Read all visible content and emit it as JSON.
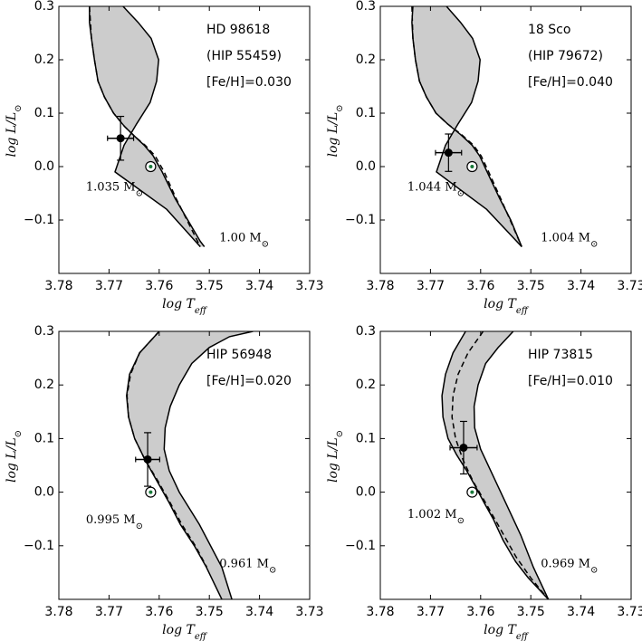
{
  "chart_data": [
    {
      "type": "line",
      "title_lines": [
        "HD 98618",
        "(HIP 55459)",
        "[Fe/H]=0.030"
      ],
      "xlabel": "log T",
      "xlabel_sub": "eff",
      "ylabel": "log L/L",
      "ylabel_sub": "⊙",
      "xlim": [
        3.78,
        3.73
      ],
      "ylim": [
        -0.2,
        0.3
      ],
      "xticks": [
        "3.78",
        "3.77",
        "3.76",
        "3.75",
        "3.74",
        "3.73"
      ],
      "yticks": [
        "0.3",
        "0.2",
        "0.1",
        "0.0",
        "−0.1"
      ],
      "tracks": [
        {
          "label": "1.035 M",
          "label_pos": [
            3.7746,
            -0.045
          ],
          "x": [
            3.7739,
            3.7739,
            3.7735,
            3.7729,
            3.7722,
            3.7709,
            3.7691,
            3.7669,
            3.7647,
            3.763,
            3.7612,
            3.7594,
            3.7568,
            3.7518,
            3.751
          ],
          "y": [
            0.3,
            0.27,
            0.24,
            0.2,
            0.16,
            0.13,
            0.1,
            0.075,
            0.055,
            0.04,
            0.02,
            -0.01,
            -0.06,
            -0.14,
            -0.15
          ]
        },
        {
          "label": "1.00 M",
          "label_pos": [
            3.748,
            -0.14
          ],
          "x": [
            3.7672,
            3.7642,
            3.7616,
            3.7601,
            3.7605,
            3.7618,
            3.7645,
            3.767,
            3.7688,
            3.7585,
            3.7518
          ],
          "y": [
            0.3,
            0.27,
            0.24,
            0.2,
            0.16,
            0.12,
            0.08,
            0.04,
            -0.01,
            -0.08,
            -0.15
          ]
        }
      ],
      "dashed": {
        "x": [
          3.7739,
          3.7735,
          3.7729,
          3.7722,
          3.7709,
          3.7691,
          3.7669,
          3.7647,
          3.7628,
          3.7608,
          3.759,
          3.7566,
          3.7518
        ],
        "y": [
          0.3,
          0.24,
          0.2,
          0.16,
          0.13,
          0.1,
          0.075,
          0.055,
          0.04,
          0.02,
          -0.01,
          -0.06,
          -0.15
        ]
      },
      "star": {
        "x": 3.7677,
        "y": 0.053,
        "xerr": 0.0026,
        "yerr": 0.041
      },
      "sun": {
        "x": 3.7617,
        "y": 0.0
      }
    },
    {
      "type": "line",
      "title_lines": [
        "18 Sco",
        "(HIP 79672)",
        "[Fe/H]=0.040"
      ],
      "xlabel": "log T",
      "xlabel_sub": "eff",
      "ylabel": "log L/L",
      "ylabel_sub": "⊙",
      "xlim": [
        3.78,
        3.73
      ],
      "ylim": [
        -0.2,
        0.3
      ],
      "xticks": [
        "3.78",
        "3.77",
        "3.76",
        "3.75",
        "3.74",
        "3.73"
      ],
      "yticks": [
        "0.3",
        "0.2",
        "0.1",
        "0.0",
        "−0.1"
      ],
      "tracks": [
        {
          "label": "1.044 M",
          "label_pos": [
            3.7746,
            -0.045
          ],
          "x": [
            3.7735,
            3.7737,
            3.7735,
            3.773,
            3.7722,
            3.7708,
            3.7689,
            3.7666,
            3.764,
            3.7617,
            3.7602,
            3.7587,
            3.7562,
            3.754,
            3.7518
          ],
          "y": [
            0.3,
            0.27,
            0.24,
            0.2,
            0.16,
            0.13,
            0.1,
            0.08,
            0.06,
            0.04,
            0.02,
            -0.01,
            -0.06,
            -0.1,
            -0.15
          ]
        },
        {
          "label": "1.004 M",
          "label_pos": [
            3.748,
            -0.14
          ],
          "x": [
            3.7668,
            3.764,
            3.7616,
            3.7601,
            3.7605,
            3.7618,
            3.7645,
            3.767,
            3.7688,
            3.7588,
            3.7518
          ],
          "y": [
            0.3,
            0.27,
            0.24,
            0.2,
            0.16,
            0.12,
            0.08,
            0.04,
            -0.01,
            -0.08,
            -0.15
          ]
        }
      ],
      "dashed": {
        "x": [
          3.7737,
          3.7735,
          3.773,
          3.7722,
          3.7708,
          3.7689,
          3.7666,
          3.7638,
          3.7614,
          3.7599,
          3.7584,
          3.756,
          3.7518
        ],
        "y": [
          0.3,
          0.24,
          0.2,
          0.16,
          0.13,
          0.1,
          0.08,
          0.06,
          0.04,
          0.02,
          -0.01,
          -0.06,
          -0.15
        ]
      },
      "star": {
        "x": 3.7664,
        "y": 0.026,
        "xerr": 0.0026,
        "yerr": 0.035
      },
      "sun": {
        "x": 3.7617,
        "y": 0.0
      }
    },
    {
      "type": "line",
      "title_lines": [
        "HIP 56948",
        "[Fe/H]=0.020"
      ],
      "xlabel": "log T",
      "xlabel_sub": "eff",
      "ylabel": "log L/L",
      "ylabel_sub": "⊙",
      "xlim": [
        3.78,
        3.73
      ],
      "ylim": [
        -0.2,
        0.3
      ],
      "xticks": [
        "3.78",
        "3.77",
        "3.76",
        "3.75",
        "3.74",
        "3.73"
      ],
      "yticks": [
        "0.3",
        "0.2",
        "0.1",
        "0.0",
        "−0.1"
      ],
      "tracks": [
        {
          "label": "0.995 M",
          "label_pos": [
            3.7746,
            -0.058
          ],
          "x": [
            3.76,
            3.7639,
            3.7659,
            3.7665,
            3.7661,
            3.7649,
            3.7628,
            3.7604,
            3.758,
            3.7558,
            3.753,
            3.7506,
            3.7475
          ],
          "y": [
            0.3,
            0.26,
            0.22,
            0.18,
            0.14,
            0.1,
            0.06,
            0.02,
            -0.02,
            -0.06,
            -0.1,
            -0.14,
            -0.2
          ]
        },
        {
          "label": "0.961 M",
          "label_pos": [
            3.748,
            -0.14
          ],
          "x": [
            3.7413,
            3.746,
            3.75,
            3.7535,
            3.756,
            3.7578,
            3.7588,
            3.759,
            3.758,
            3.756,
            3.752,
            3.7475,
            3.7455
          ],
          "y": [
            0.3,
            0.29,
            0.27,
            0.24,
            0.2,
            0.16,
            0.12,
            0.08,
            0.04,
            0.0,
            -0.06,
            -0.14,
            -0.2
          ]
        }
      ],
      "dashed": {
        "x": [
          3.76,
          3.7639,
          3.7657,
          3.7664,
          3.7661,
          3.7649,
          3.7628,
          3.7602,
          3.7578,
          3.7555,
          3.7528,
          3.7505
        ],
        "y": [
          0.3,
          0.26,
          0.22,
          0.18,
          0.14,
          0.1,
          0.06,
          0.02,
          -0.02,
          -0.06,
          -0.1,
          -0.14
        ]
      },
      "star": {
        "x": 3.7623,
        "y": 0.061,
        "xerr": 0.0024,
        "yerr": 0.05
      },
      "sun": {
        "x": 3.7617,
        "y": 0.0
      }
    },
    {
      "type": "line",
      "title_lines": [
        "HIP 73815",
        "[Fe/H]=0.010"
      ],
      "xlabel": "log T",
      "xlabel_sub": "eff",
      "ylabel": "log L/L",
      "ylabel_sub": "⊙",
      "xlim": [
        3.78,
        3.73
      ],
      "ylim": [
        -0.2,
        0.3
      ],
      "xticks": [
        "3.78",
        "3.77",
        "3.76",
        "3.75",
        "3.74",
        "3.73"
      ],
      "yticks": [
        "0.3",
        "0.2",
        "0.1",
        "0.0",
        "−0.1"
      ],
      "tracks": [
        {
          "label": "1.002 M",
          "label_pos": [
            3.7746,
            -0.048
          ],
          "x": [
            3.763,
            3.7655,
            3.767,
            3.7677,
            3.7675,
            3.7665,
            3.7648,
            3.7628,
            3.761,
            3.7593,
            3.7575,
            3.7555,
            3.753,
            3.7505,
            3.7465
          ],
          "y": [
            0.3,
            0.26,
            0.22,
            0.18,
            0.14,
            0.1,
            0.07,
            0.04,
            0.01,
            -0.02,
            -0.05,
            -0.09,
            -0.13,
            -0.16,
            -0.2
          ]
        },
        {
          "label": "0.969 M",
          "label_pos": [
            3.748,
            -0.14
          ],
          "x": [
            3.7535,
            3.7565,
            3.759,
            3.7605,
            3.7613,
            3.7612,
            3.76,
            3.758,
            3.755,
            3.752,
            3.7495,
            3.7465
          ],
          "y": [
            0.3,
            0.27,
            0.24,
            0.2,
            0.16,
            0.12,
            0.08,
            0.04,
            -0.02,
            -0.08,
            -0.14,
            -0.2
          ]
        }
      ],
      "dashed": {
        "x": [
          3.7595,
          3.7625,
          3.7645,
          3.7655,
          3.7657,
          3.765,
          3.7635,
          3.7615,
          3.759,
          3.756,
          3.753,
          3.75,
          3.7465
        ],
        "y": [
          0.3,
          0.26,
          0.22,
          0.18,
          0.14,
          0.1,
          0.06,
          0.02,
          -0.02,
          -0.07,
          -0.12,
          -0.16,
          -0.2
        ]
      },
      "star": {
        "x": 3.7634,
        "y": 0.083,
        "xerr": 0.0027,
        "yerr": 0.049
      },
      "sun": {
        "x": 3.7617,
        "y": 0.0
      }
    }
  ]
}
